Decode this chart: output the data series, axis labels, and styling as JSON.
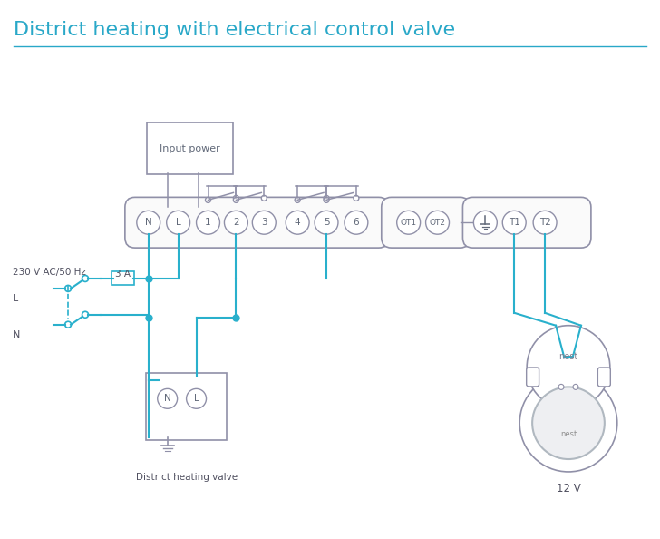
{
  "title": "District heating with electrical control valve",
  "title_color": "#29a8c8",
  "title_fontsize": 16,
  "bg_color": "#ffffff",
  "line_color": "#29b0cc",
  "box_color": "#9090a8",
  "label_230": "230 V AC/50 Hz",
  "label_L": "L",
  "label_N": "N",
  "label_3A": "3 A",
  "label_input_power": "Input power",
  "label_valve": "District heating valve",
  "label_12V": "12 V",
  "label_nest": "nest"
}
